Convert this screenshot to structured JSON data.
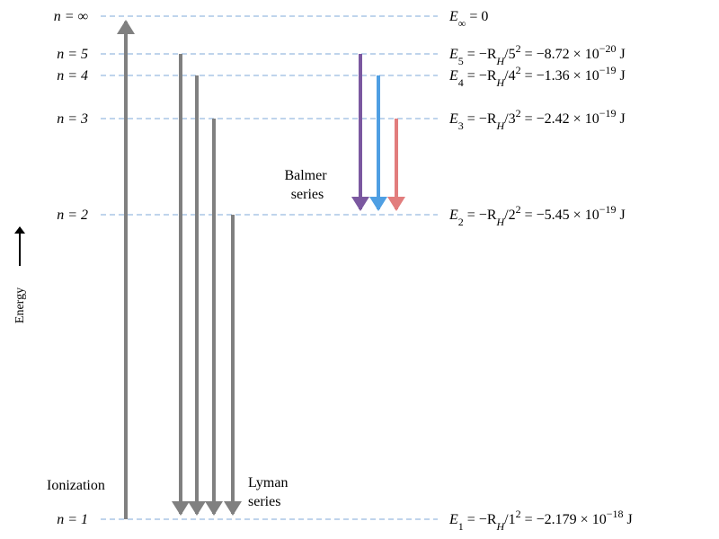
{
  "levels": [
    {
      "n": "n = ∞",
      "energy": [
        "E",
        "∞",
        " = 0"
      ]
    },
    {
      "n": "n = 5",
      "energy": [
        "E",
        "5",
        " = −R",
        "H",
        "/5",
        "2",
        " = −8.72 × 10",
        "−20",
        " J"
      ]
    },
    {
      "n": "n = 4",
      "energy": [
        "E",
        "4",
        " = −R",
        "H",
        "/4",
        "2",
        " = −1.36 × 10",
        "−19",
        " J"
      ]
    },
    {
      "n": "n = 3",
      "energy": [
        "E",
        "3",
        " = −R",
        "H",
        "/3",
        "2",
        " = −2.42 × 10",
        "−19",
        " J"
      ]
    },
    {
      "n": "n = 2",
      "energy": [
        "E",
        "2",
        " = −R",
        "H",
        "/2",
        "2",
        " = −5.45 × 10",
        "−19",
        " J"
      ]
    },
    {
      "n": "n = 1",
      "energy": [
        "E",
        "1",
        " = −R",
        "H",
        "/1",
        "2",
        " = −2.179 × 10",
        "−18",
        " J"
      ]
    }
  ],
  "balmer_label": [
    "Balmer",
    "series"
  ],
  "lyman_label": [
    "Lyman",
    "series"
  ],
  "ionization_label": "Ionization",
  "axis_label": "Energy"
}
